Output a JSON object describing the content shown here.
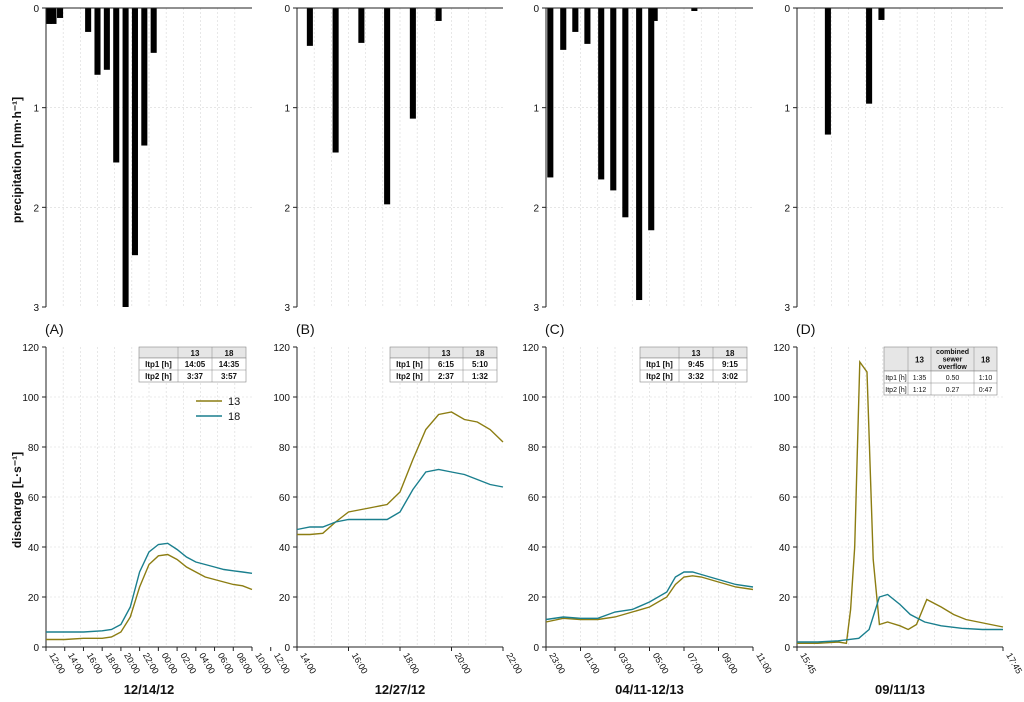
{
  "y_label_precip": "precipitation [mm·h⁻¹]",
  "y_label_discharge": "discharge [L·s⁻¹]",
  "colors": {
    "series_13": "#8c7d12",
    "series_18": "#1a7f8e",
    "bar": "#000000",
    "grid": "#d8d8d8",
    "axis": "#222222"
  },
  "chart_data": [
    {
      "id": "A",
      "panel_label": "(A)",
      "date_label": "12/14/12",
      "precip": {
        "type": "bar",
        "ylim": [
          0,
          3
        ],
        "yticks": [
          "0",
          "1",
          "2",
          "3"
        ],
        "bars": [
          {
            "x": 0.3,
            "value": 0.16
          },
          {
            "x": 0.8,
            "value": 0.16
          },
          {
            "x": 1.5,
            "value": 0.1
          },
          {
            "x": 4.5,
            "value": 0.24
          },
          {
            "x": 5.5,
            "value": 0.67
          },
          {
            "x": 6.5,
            "value": 0.62
          },
          {
            "x": 7.5,
            "value": 1.55
          },
          {
            "x": 8.5,
            "value": 3.0
          },
          {
            "x": 9.5,
            "value": 2.48
          },
          {
            "x": 10.5,
            "value": 1.38
          },
          {
            "x": 11.5,
            "value": 0.45
          }
        ]
      },
      "discharge": {
        "type": "line",
        "xlim": [
          0,
          22
        ],
        "ylim": [
          0,
          120
        ],
        "yticks": [
          "0",
          "20",
          "40",
          "60",
          "80",
          "100",
          "120"
        ],
        "xticks": [
          {
            "x": 0,
            "label": "12:00"
          },
          {
            "x": 2,
            "label": "14:00"
          },
          {
            "x": 4,
            "label": "16:00"
          },
          {
            "x": 6,
            "label": "18:00"
          },
          {
            "x": 8,
            "label": "20:00"
          },
          {
            "x": 10,
            "label": "22:00"
          },
          {
            "x": 12,
            "label": "00:00"
          },
          {
            "x": 14,
            "label": "02:00"
          },
          {
            "x": 16,
            "label": "04:00"
          },
          {
            "x": 18,
            "label": "06:00"
          },
          {
            "x": 20,
            "label": "08:00"
          },
          {
            "x": 22,
            "label": "10:00"
          },
          {
            "x": 24,
            "label": "12:00"
          }
        ],
        "series": [
          {
            "name": "13",
            "color": "#8c7d12",
            "points": [
              [
                0,
                3
              ],
              [
                2,
                3
              ],
              [
                4,
                3.5
              ],
              [
                6,
                3.5
              ],
              [
                7,
                4
              ],
              [
                8,
                6
              ],
              [
                9,
                12
              ],
              [
                10,
                24
              ],
              [
                11,
                33
              ],
              [
                12,
                36.5
              ],
              [
                13,
                37
              ],
              [
                14,
                35
              ],
              [
                15,
                32
              ],
              [
                16,
                30
              ],
              [
                17,
                28
              ],
              [
                18,
                27
              ],
              [
                19,
                26
              ],
              [
                20,
                25
              ],
              [
                21,
                24.5
              ],
              [
                22,
                23
              ]
            ]
          },
          {
            "name": "18",
            "color": "#1a7f8e",
            "points": [
              [
                0,
                6
              ],
              [
                2,
                6
              ],
              [
                4,
                6
              ],
              [
                6,
                6.5
              ],
              [
                7,
                7
              ],
              [
                8,
                9
              ],
              [
                9,
                16
              ],
              [
                10,
                30
              ],
              [
                11,
                38
              ],
              [
                12,
                41
              ],
              [
                13,
                41.5
              ],
              [
                14,
                39
              ],
              [
                15,
                36
              ],
              [
                16,
                34
              ],
              [
                17,
                33
              ],
              [
                18,
                32
              ],
              [
                19,
                31
              ],
              [
                20,
                30.5
              ],
              [
                21,
                30
              ],
              [
                22,
                29.5
              ]
            ]
          }
        ],
        "legend": [
          "13",
          "18"
        ],
        "table": {
          "header": [
            "",
            "13",
            "18"
          ],
          "rows": [
            [
              "Itp1 [h]",
              "14:05",
              "14:35"
            ],
            [
              "Itp2 [h]",
              "3:37",
              "3:57"
            ]
          ]
        }
      }
    },
    {
      "id": "B",
      "panel_label": "(B)",
      "date_label": "12/27/12",
      "precip": {
        "type": "bar",
        "ylim": [
          0,
          3
        ],
        "yticks": [
          "0",
          "1",
          "2",
          "3"
        ],
        "bars": [
          {
            "x": 0.5,
            "value": 0.38
          },
          {
            "x": 1.5,
            "value": 1.45
          },
          {
            "x": 2.5,
            "value": 0.35
          },
          {
            "x": 3.5,
            "value": 1.97
          },
          {
            "x": 4.5,
            "value": 1.11
          },
          {
            "x": 5.5,
            "value": 0.13
          }
        ]
      },
      "discharge": {
        "type": "line",
        "xlim": [
          0,
          8
        ],
        "ylim": [
          0,
          120
        ],
        "yticks": [
          "0",
          "20",
          "40",
          "60",
          "80",
          "100",
          "120"
        ],
        "xticks": [
          {
            "x": 0,
            "label": "14:00"
          },
          {
            "x": 2,
            "label": "16:00"
          },
          {
            "x": 4,
            "label": "18:00"
          },
          {
            "x": 6,
            "label": "20:00"
          },
          {
            "x": 8,
            "label": "22:00"
          }
        ],
        "series": [
          {
            "name": "13",
            "color": "#8c7d12",
            "points": [
              [
                0,
                45
              ],
              [
                0.5,
                45
              ],
              [
                1,
                45.5
              ],
              [
                1.5,
                50
              ],
              [
                2,
                54
              ],
              [
                2.5,
                55
              ],
              [
                3,
                56
              ],
              [
                3.5,
                57
              ],
              [
                4,
                62
              ],
              [
                4.5,
                75
              ],
              [
                5,
                87
              ],
              [
                5.5,
                93
              ],
              [
                6,
                94
              ],
              [
                6.5,
                91
              ],
              [
                7,
                90
              ],
              [
                7.5,
                87
              ],
              [
                8,
                82
              ]
            ]
          },
          {
            "name": "18",
            "color": "#1a7f8e",
            "points": [
              [
                0,
                47
              ],
              [
                0.5,
                48
              ],
              [
                1,
                48
              ],
              [
                1.5,
                50
              ],
              [
                2,
                51
              ],
              [
                2.5,
                51
              ],
              [
                3,
                51
              ],
              [
                3.5,
                51
              ],
              [
                4,
                54
              ],
              [
                4.5,
                63
              ],
              [
                5,
                70
              ],
              [
                5.5,
                71
              ],
              [
                6,
                70
              ],
              [
                6.5,
                69
              ],
              [
                7,
                67
              ],
              [
                7.5,
                65
              ],
              [
                8,
                64
              ]
            ]
          }
        ],
        "table": {
          "header": [
            "",
            "13",
            "18"
          ],
          "rows": [
            [
              "Itp1 [h]",
              "6:15",
              "5:10"
            ],
            [
              "Itp2 [h]",
              "2:37",
              "1:32"
            ]
          ]
        }
      }
    },
    {
      "id": "C",
      "panel_label": "(C)",
      "date_label": "04/11-12/13",
      "precip": {
        "type": "bar",
        "ylim": [
          0,
          3
        ],
        "yticks": [
          "0",
          "1",
          "2",
          "3"
        ],
        "bars": [
          {
            "x": 0.25,
            "value": 1.7
          },
          {
            "x": 1.0,
            "value": 0.42
          },
          {
            "x": 1.7,
            "value": 0.24
          },
          {
            "x": 2.4,
            "value": 0.36
          },
          {
            "x": 3.2,
            "value": 1.72
          },
          {
            "x": 3.9,
            "value": 1.83
          },
          {
            "x": 4.6,
            "value": 2.1
          },
          {
            "x": 5.4,
            "value": 2.93
          },
          {
            "x": 6.1,
            "value": 2.23
          },
          {
            "x": 6.3,
            "value": 0.13
          },
          {
            "x": 8.6,
            "value": 0.03
          }
        ]
      },
      "discharge": {
        "type": "line",
        "xlim": [
          0,
          12
        ],
        "ylim": [
          0,
          120
        ],
        "yticks": [
          "0",
          "20",
          "40",
          "60",
          "80",
          "100",
          "120"
        ],
        "xticks": [
          {
            "x": 0,
            "label": "23:00"
          },
          {
            "x": 2,
            "label": "01:00"
          },
          {
            "x": 4,
            "label": "03:00"
          },
          {
            "x": 6,
            "label": "05:00"
          },
          {
            "x": 8,
            "label": "07:00"
          },
          {
            "x": 10,
            "label": "09:00"
          },
          {
            "x": 12,
            "label": "11:00"
          }
        ],
        "series": [
          {
            "name": "13",
            "color": "#8c7d12",
            "points": [
              [
                0,
                10
              ],
              [
                1,
                11.5
              ],
              [
                2,
                11
              ],
              [
                3,
                11
              ],
              [
                4,
                12
              ],
              [
                5,
                14
              ],
              [
                6,
                16
              ],
              [
                7,
                20
              ],
              [
                7.5,
                25
              ],
              [
                8,
                28
              ],
              [
                8.5,
                28.5
              ],
              [
                9,
                28
              ],
              [
                10,
                26
              ],
              [
                11,
                24
              ],
              [
                12,
                23
              ]
            ]
          },
          {
            "name": "18",
            "color": "#1a7f8e",
            "points": [
              [
                0,
                11
              ],
              [
                1,
                12
              ],
              [
                2,
                11.5
              ],
              [
                3,
                11.5
              ],
              [
                4,
                14
              ],
              [
                5,
                15
              ],
              [
                6,
                18
              ],
              [
                7,
                22
              ],
              [
                7.5,
                28
              ],
              [
                8,
                30
              ],
              [
                8.5,
                30
              ],
              [
                9,
                29
              ],
              [
                10,
                27
              ],
              [
                11,
                25
              ],
              [
                12,
                24
              ]
            ]
          }
        ],
        "table": {
          "header": [
            "",
            "13",
            "18"
          ],
          "rows": [
            [
              "Itp1 [h]",
              "9:45",
              "9:15"
            ],
            [
              "Itp2 [h]",
              "3:32",
              "3:02"
            ]
          ]
        }
      }
    },
    {
      "id": "D",
      "panel_label": "(D)",
      "date_label": "09/11/13",
      "precip": {
        "type": "bar",
        "ylim": [
          0,
          3
        ],
        "yticks": [
          "0",
          "1",
          "2",
          "3"
        ],
        "bars": [
          {
            "x": 1.5,
            "value": 1.27
          },
          {
            "x": 3.5,
            "value": 0.96
          },
          {
            "x": 4.1,
            "value": 0.12
          }
        ]
      },
      "discharge": {
        "type": "line",
        "xlim": [
          0,
          10
        ],
        "ylim": [
          0,
          120
        ],
        "yticks": [
          "0",
          "20",
          "40",
          "60",
          "80",
          "100",
          "120"
        ],
        "xticks": [
          {
            "x": 0,
            "label": "15:45"
          },
          {
            "x": 10,
            "label": "17:45"
          }
        ],
        "series": [
          {
            "name": "13",
            "color": "#8c7d12",
            "points": [
              [
                0,
                1.5
              ],
              [
                1,
                1.5
              ],
              [
                2,
                2
              ],
              [
                2.4,
                1.5
              ],
              [
                2.6,
                15
              ],
              [
                2.8,
                40
              ],
              [
                3.05,
                114
              ],
              [
                3.4,
                110
              ],
              [
                3.7,
                35
              ],
              [
                4,
                9
              ],
              [
                4.4,
                10
              ],
              [
                5,
                8.5
              ],
              [
                5.4,
                7
              ],
              [
                5.8,
                9
              ],
              [
                6.3,
                19
              ],
              [
                7,
                16
              ],
              [
                7.6,
                13
              ],
              [
                8.2,
                11
              ],
              [
                8.8,
                10
              ],
              [
                9.4,
                9
              ],
              [
                10,
                8
              ]
            ]
          },
          {
            "name": "18",
            "color": "#1a7f8e",
            "points": [
              [
                0,
                2
              ],
              [
                1,
                2
              ],
              [
                2,
                2.5
              ],
              [
                3,
                3.5
              ],
              [
                3.5,
                7
              ],
              [
                4,
                20
              ],
              [
                4.4,
                21
              ],
              [
                5,
                17
              ],
              [
                5.5,
                13
              ],
              [
                6.2,
                10
              ],
              [
                7,
                8.5
              ],
              [
                8,
                7.5
              ],
              [
                9,
                7
              ],
              [
                10,
                7
              ]
            ]
          }
        ],
        "table": {
          "header": [
            "",
            "13",
            "combined sewer overflow",
            "18"
          ],
          "rows": [
            [
              "Itp1 [h]",
              "1:35",
              "0.50",
              "1:10"
            ],
            [
              "Itp2 [h]",
              "1:12",
              "0.27",
              "0:47"
            ]
          ]
        }
      }
    }
  ]
}
